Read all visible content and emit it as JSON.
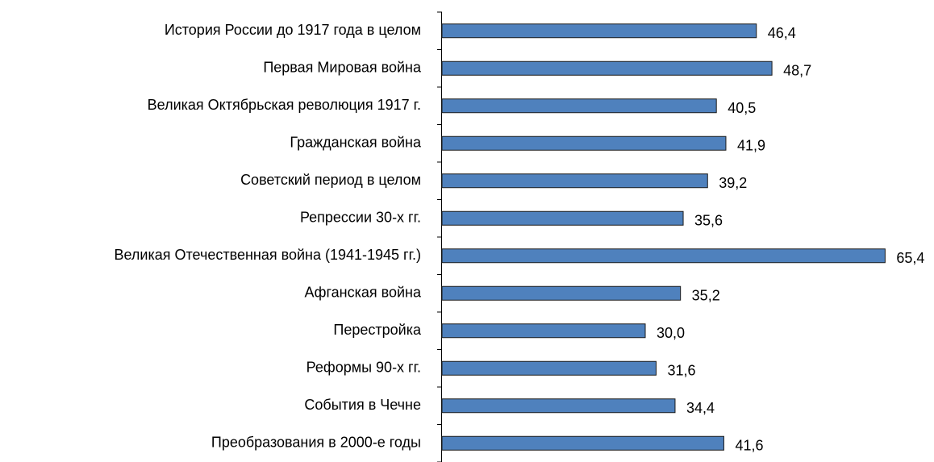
{
  "chart_data": {
    "type": "bar",
    "orientation": "horizontal",
    "categories": [
      "История России до 1917 года в целом",
      "Первая Мировая война",
      "Великая Октябрьская революция 1917 г.",
      "Гражданская война",
      "Советский период в целом",
      "Репрессии 30-х гг.",
      "Великая Отечественная война (1941-1945 гг.)",
      "Афганская война",
      "Перестройка",
      "Реформы 90-х гг.",
      "События в Чечне",
      "Преобразования в 2000-е годы"
    ],
    "values": [
      46.4,
      48.7,
      40.5,
      41.9,
      39.2,
      35.6,
      65.4,
      35.2,
      30.0,
      31.6,
      34.4,
      41.6
    ],
    "value_labels": [
      "46,4",
      "48,7",
      "40,5",
      "41,9",
      "39,2",
      "35,6",
      "65,4",
      "35,2",
      "30,0",
      "31,6",
      "34,4",
      "41,6"
    ],
    "color": "#4f81bd",
    "xlim": [
      0,
      70
    ]
  }
}
